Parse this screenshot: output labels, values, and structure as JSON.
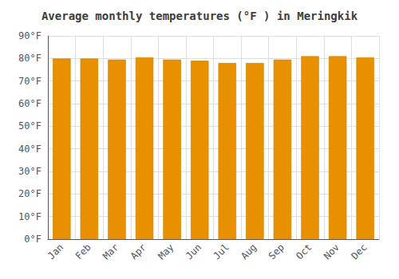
{
  "chart_data": {
    "type": "bar",
    "title": "Average monthly temperatures (°F ) in Meringkik",
    "categories": [
      "Jan",
      "Feb",
      "Mar",
      "Apr",
      "May",
      "Jun",
      "Jul",
      "Aug",
      "Sep",
      "Oct",
      "Nov",
      "Dec"
    ],
    "values": [
      80,
      80,
      79.5,
      80.5,
      79.5,
      79,
      78,
      78,
      79.5,
      81,
      81,
      80.5
    ],
    "color": "#E89000",
    "ylim": [
      0,
      90
    ],
    "yticks": [
      {
        "value": 0,
        "label": "0°F"
      },
      {
        "value": 10,
        "label": "10°F"
      },
      {
        "value": 20,
        "label": "20°F"
      },
      {
        "value": 30,
        "label": "30°F"
      },
      {
        "value": 40,
        "label": "40°F"
      },
      {
        "value": 50,
        "label": "50°F"
      },
      {
        "value": 60,
        "label": "60°F"
      },
      {
        "value": 70,
        "label": "70°F"
      },
      {
        "value": 80,
        "label": "80°F"
      },
      {
        "value": 90,
        "label": "90°F"
      }
    ],
    "grid": true
  }
}
